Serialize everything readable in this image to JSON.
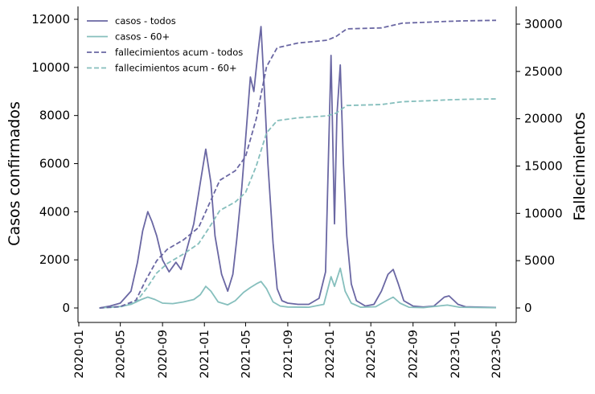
{
  "chart_data": {
    "type": "line",
    "title": "",
    "xlabel": "",
    "ylabel_left": "Casos confirmados",
    "ylabel_right": "Fallecimientos",
    "xlim": [
      "2020-01",
      "2023-05"
    ],
    "ylim_left": [
      -500,
      12400
    ],
    "ylim_right": [
      -1100,
      31700
    ],
    "x_ticks": [
      "2020-01",
      "2020-05",
      "2020-09",
      "2021-01",
      "2021-05",
      "2021-09",
      "2022-01",
      "2022-05",
      "2022-09",
      "2023-01",
      "2023-05"
    ],
    "y_ticks_left": [
      0,
      2000,
      4000,
      6000,
      8000,
      10000,
      12000
    ],
    "y_ticks_right": [
      0,
      5000,
      10000,
      15000,
      20000,
      25000,
      30000
    ],
    "grid": false,
    "legend_position": "top-left",
    "series": [
      {
        "name": "casos - todos",
        "axis": "left",
        "style": "solid",
        "color": "#6a67a3",
        "points": [
          [
            "2020-03-01",
            0
          ],
          [
            "2020-04-01",
            80
          ],
          [
            "2020-05-01",
            200
          ],
          [
            "2020-06-01",
            700
          ],
          [
            "2020-06-20",
            1900
          ],
          [
            "2020-07-05",
            3200
          ],
          [
            "2020-07-20",
            4000
          ],
          [
            "2020-08-01",
            3600
          ],
          [
            "2020-08-15",
            3000
          ],
          [
            "2020-09-01",
            2000
          ],
          [
            "2020-09-20",
            1500
          ],
          [
            "2020-10-10",
            1900
          ],
          [
            "2020-10-25",
            1600
          ],
          [
            "2020-11-10",
            2400
          ],
          [
            "2020-12-01",
            3500
          ],
          [
            "2020-12-20",
            5200
          ],
          [
            "2021-01-05",
            6600
          ],
          [
            "2021-01-20",
            5200
          ],
          [
            "2021-02-01",
            3000
          ],
          [
            "2021-02-20",
            1400
          ],
          [
            "2021-03-10",
            700
          ],
          [
            "2021-03-25",
            1400
          ],
          [
            "2021-04-05",
            2800
          ],
          [
            "2021-04-20",
            5000
          ],
          [
            "2021-05-01",
            7000
          ],
          [
            "2021-05-15",
            9600
          ],
          [
            "2021-05-25",
            9000
          ],
          [
            "2021-06-05",
            10500
          ],
          [
            "2021-06-15",
            11700
          ],
          [
            "2021-06-25",
            9000
          ],
          [
            "2021-07-05",
            6000
          ],
          [
            "2021-07-20",
            2700
          ],
          [
            "2021-08-01",
            800
          ],
          [
            "2021-08-15",
            300
          ],
          [
            "2021-09-01",
            200
          ],
          [
            "2021-10-01",
            150
          ],
          [
            "2021-11-01",
            150
          ],
          [
            "2021-12-01",
            400
          ],
          [
            "2021-12-20",
            1500
          ],
          [
            "2022-01-05",
            10500
          ],
          [
            "2022-01-15",
            3500
          ],
          [
            "2022-01-22",
            8000
          ],
          [
            "2022-02-01",
            10100
          ],
          [
            "2022-02-10",
            6000
          ],
          [
            "2022-02-20",
            3000
          ],
          [
            "2022-03-05",
            1000
          ],
          [
            "2022-03-20",
            300
          ],
          [
            "2022-04-15",
            80
          ],
          [
            "2022-05-10",
            150
          ],
          [
            "2022-06-01",
            700
          ],
          [
            "2022-06-20",
            1400
          ],
          [
            "2022-07-05",
            1600
          ],
          [
            "2022-07-20",
            1000
          ],
          [
            "2022-08-05",
            300
          ],
          [
            "2022-09-01",
            80
          ],
          [
            "2022-10-01",
            40
          ],
          [
            "2022-11-01",
            80
          ],
          [
            "2022-12-01",
            450
          ],
          [
            "2022-12-15",
            500
          ],
          [
            "2023-01-10",
            150
          ],
          [
            "2023-02-01",
            50
          ],
          [
            "2023-05-01",
            20
          ]
        ]
      },
      {
        "name": "casos - 60+",
        "axis": "left",
        "style": "solid",
        "color": "#86bfbd",
        "points": [
          [
            "2020-03-01",
            0
          ],
          [
            "2020-04-01",
            30
          ],
          [
            "2020-05-01",
            60
          ],
          [
            "2020-06-01",
            150
          ],
          [
            "2020-07-01",
            350
          ],
          [
            "2020-07-20",
            450
          ],
          [
            "2020-08-10",
            350
          ],
          [
            "2020-09-01",
            200
          ],
          [
            "2020-10-01",
            180
          ],
          [
            "2020-11-01",
            250
          ],
          [
            "2020-12-01",
            350
          ],
          [
            "2020-12-20",
            550
          ],
          [
            "2021-01-05",
            900
          ],
          [
            "2021-01-20",
            700
          ],
          [
            "2021-02-10",
            250
          ],
          [
            "2021-03-10",
            130
          ],
          [
            "2021-04-01",
            300
          ],
          [
            "2021-04-25",
            650
          ],
          [
            "2021-05-15",
            850
          ],
          [
            "2021-06-01",
            1000
          ],
          [
            "2021-06-15",
            1100
          ],
          [
            "2021-07-01",
            800
          ],
          [
            "2021-07-20",
            250
          ],
          [
            "2021-08-10",
            80
          ],
          [
            "2021-09-01",
            40
          ],
          [
            "2021-11-01",
            30
          ],
          [
            "2021-12-15",
            150
          ],
          [
            "2022-01-05",
            1300
          ],
          [
            "2022-01-15",
            900
          ],
          [
            "2022-02-01",
            1650
          ],
          [
            "2022-02-15",
            700
          ],
          [
            "2022-03-05",
            200
          ],
          [
            "2022-04-01",
            30
          ],
          [
            "2022-05-15",
            50
          ],
          [
            "2022-06-15",
            300
          ],
          [
            "2022-07-05",
            450
          ],
          [
            "2022-07-25",
            200
          ],
          [
            "2022-08-20",
            30
          ],
          [
            "2022-10-01",
            15
          ],
          [
            "2022-12-10",
            120
          ],
          [
            "2023-01-15",
            30
          ],
          [
            "2023-05-01",
            10
          ]
        ]
      },
      {
        "name": "fallecimientos acum - todos",
        "axis": "right",
        "style": "dashed",
        "color": "#6a67a3",
        "points": [
          [
            "2020-03-01",
            0
          ],
          [
            "2020-05-01",
            150
          ],
          [
            "2020-06-15",
            800
          ],
          [
            "2020-07-15",
            3000
          ],
          [
            "2020-08-15",
            5000
          ],
          [
            "2020-09-15",
            6200
          ],
          [
            "2020-11-01",
            7200
          ],
          [
            "2020-12-15",
            8500
          ],
          [
            "2021-01-15",
            11000
          ],
          [
            "2021-02-15",
            13500
          ],
          [
            "2021-04-01",
            14500
          ],
          [
            "2021-05-01",
            16000
          ],
          [
            "2021-06-01",
            20000
          ],
          [
            "2021-07-01",
            25500
          ],
          [
            "2021-08-01",
            27500
          ],
          [
            "2021-10-01",
            28000
          ],
          [
            "2021-12-25",
            28300
          ],
          [
            "2022-01-20",
            28700
          ],
          [
            "2022-02-20",
            29500
          ],
          [
            "2022-06-01",
            29600
          ],
          [
            "2022-08-01",
            30100
          ],
          [
            "2022-10-15",
            30200
          ],
          [
            "2022-12-15",
            30300
          ],
          [
            "2023-02-01",
            30350
          ],
          [
            "2023-05-01",
            30400
          ]
        ]
      },
      {
        "name": "fallecimientos acum - 60+",
        "axis": "right",
        "style": "dashed",
        "color": "#86bfbd",
        "points": [
          [
            "2020-03-01",
            0
          ],
          [
            "2020-05-01",
            100
          ],
          [
            "2020-06-15",
            600
          ],
          [
            "2020-07-15",
            2000
          ],
          [
            "2020-08-15",
            3700
          ],
          [
            "2020-09-15",
            4700
          ],
          [
            "2020-11-01",
            5700
          ],
          [
            "2020-12-15",
            6800
          ],
          [
            "2021-01-15",
            8500
          ],
          [
            "2021-02-15",
            10300
          ],
          [
            "2021-04-01",
            11200
          ],
          [
            "2021-05-01",
            12200
          ],
          [
            "2021-06-01",
            15000
          ],
          [
            "2021-07-01",
            18500
          ],
          [
            "2021-08-01",
            19800
          ],
          [
            "2021-10-01",
            20100
          ],
          [
            "2021-12-25",
            20300
          ],
          [
            "2022-01-20",
            20600
          ],
          [
            "2022-02-20",
            21400
          ],
          [
            "2022-06-01",
            21500
          ],
          [
            "2022-08-01",
            21800
          ],
          [
            "2022-10-15",
            21900
          ],
          [
            "2022-12-15",
            22000
          ],
          [
            "2023-02-01",
            22050
          ],
          [
            "2023-05-01",
            22100
          ]
        ]
      }
    ]
  }
}
